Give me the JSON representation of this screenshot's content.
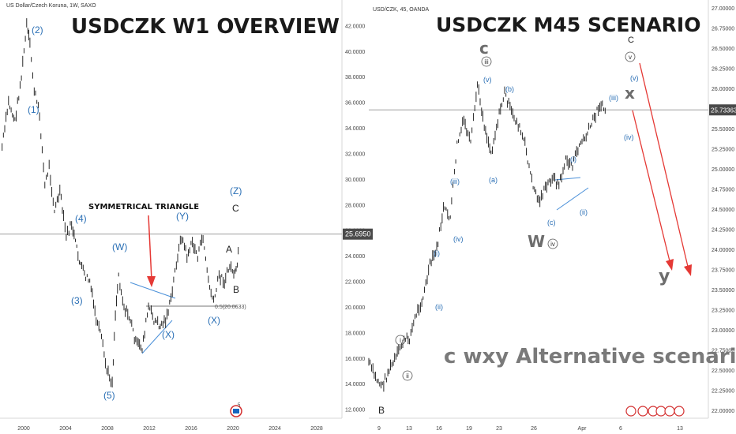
{
  "left_panel": {
    "symbol": "US Dollar/Czech Koruna, 1W, SAXO",
    "title": "USDCZK W1 OVERVIEW",
    "price_label": "25.6950",
    "price_line": 25.695,
    "fib_label": "0.5(20.0633)",
    "fib_value": 20.0633,
    "triangle_label": "SYMMETRICAL TRIANGLE",
    "labels": [
      "(2)",
      "(1)",
      "(4)",
      "(3)",
      "(5)",
      "(W)",
      "(X)",
      "(Y)",
      "(X)",
      "(Z)",
      "C",
      "A",
      "B"
    ],
    "icon": "flag-badge-icon"
  },
  "right_panel": {
    "symbol": "USD/CZK, 45, OANDA",
    "title": "USDCZK M45 SCENARIO",
    "price_label": "25.73363",
    "price_line": 25.73363,
    "subtitle": "c wxy Alternative scenario",
    "labels": [
      "C",
      "W",
      "x",
      "y",
      "c",
      "(v)",
      "(b)",
      "(a)",
      "(iii)",
      "(iv)",
      "(i)",
      "(ii)",
      "(c)",
      "(i)",
      "(ii)",
      "(iii)",
      "(iv)",
      "(v)",
      "B",
      "i",
      "ii",
      "iii",
      "iv",
      "v"
    ],
    "icons": "event-flags-icon"
  },
  "chart_data": [
    {
      "type": "line",
      "title": "USDCZK W1 OVERVIEW",
      "xlabel": "",
      "ylabel": "",
      "x_ticks": [
        "2000",
        "2004",
        "2008",
        "2012",
        "2016",
        "2020",
        "2024",
        "2028"
      ],
      "y_ticks": [
        "12.0000",
        "14.0000",
        "16.0000",
        "18.0000",
        "20.0000",
        "22.0000",
        "24.0000",
        "26.0000",
        "28.0000",
        "30.0000",
        "32.0000",
        "34.0000",
        "36.0000",
        "38.0000",
        "40.0000",
        "42.0000"
      ],
      "xlim": [
        1998,
        2030
      ],
      "ylim": [
        11.3,
        44.0
      ],
      "series": [
        {
          "x": [
            1998.2,
            1998.8,
            1999.4,
            2000.0,
            2000.5,
            2000.8,
            2001.2,
            2001.7,
            2002.2,
            2002.6,
            2003.1,
            2003.6,
            2004.2,
            2004.7,
            2005.3,
            2005.9,
            2006.4,
            2007.0,
            2007.5,
            2008.0,
            2008.5,
            2008.8,
            2009.1,
            2009.6,
            2010.2,
            2010.7,
            2011.3,
            2011.9,
            2012.4,
            2013.0,
            2013.5,
            2014.0,
            2014.5,
            2015.0,
            2015.5,
            2016.0,
            2016.5,
            2017.0,
            2017.5,
            2018.0,
            2018.5,
            2019.0,
            2019.5,
            2020.0,
            2020.2,
            2020.4
          ],
          "values": [
            32.5,
            36.0,
            34.5,
            38.0,
            42.0,
            40.5,
            37.0,
            35.0,
            29.5,
            31.0,
            27.5,
            29.0,
            25.5,
            26.5,
            24.0,
            22.5,
            22.0,
            19.0,
            17.5,
            15.0,
            14.1,
            19.5,
            22.5,
            20.0,
            19.0,
            17.2,
            16.8,
            20.0,
            19.0,
            18.5,
            19.0,
            20.5,
            23.5,
            25.5,
            24.0,
            25.0,
            24.0,
            25.5,
            22.0,
            20.3,
            22.5,
            22.0,
            23.2,
            22.5,
            23.0,
            25.8
          ]
        }
      ]
    },
    {
      "type": "line",
      "title": "USDCZK M45 SCENARIO",
      "xlabel": "",
      "ylabel": "",
      "x_ticks": [
        "9",
        "13",
        "16",
        "19",
        "23",
        "26",
        "Apr",
        "6",
        "13"
      ],
      "y_ticks": [
        "22.00000",
        "22.25000",
        "22.50000",
        "22.75000",
        "23.00000",
        "23.25000",
        "23.50000",
        "23.75000",
        "24.00000",
        "24.25000",
        "24.50000",
        "24.75000",
        "25.00000",
        "25.25000",
        "25.50000",
        "25.75000",
        "26.00000",
        "26.25000",
        "26.50000",
        "26.75000",
        "27.00000"
      ],
      "xlim": [
        0,
        100
      ],
      "ylim": [
        21.9,
        27.1
      ],
      "series": [
        {
          "x": [
            0,
            2,
            4,
            6,
            8,
            10,
            12,
            14,
            16,
            18,
            20,
            22,
            24,
            26,
            28,
            30,
            32,
            34,
            36,
            38,
            40,
            42,
            44,
            46,
            48,
            50,
            52,
            54,
            56,
            58,
            60,
            62,
            64,
            66,
            68,
            70
          ],
          "values": [
            22.6,
            22.4,
            22.3,
            22.5,
            22.65,
            22.85,
            22.9,
            23.2,
            23.4,
            23.8,
            24.0,
            24.5,
            24.4,
            25.3,
            25.6,
            25.3,
            26.05,
            25.55,
            25.2,
            25.6,
            25.95,
            25.7,
            25.55,
            25.3,
            24.85,
            24.6,
            24.75,
            24.9,
            24.8,
            25.1,
            25.05,
            25.3,
            25.4,
            25.6,
            25.8,
            25.72
          ]
        }
      ]
    }
  ]
}
